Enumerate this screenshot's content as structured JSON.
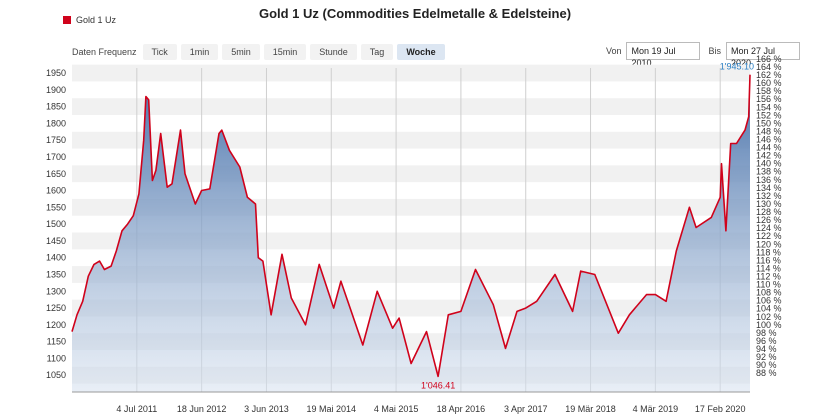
{
  "title": "Gold 1 Uz (Commodities Edelmetalle & Edelsteine)",
  "legend": {
    "label": "Gold 1 Uz",
    "color": "#d0021b"
  },
  "toolbar": {
    "freq_label": "Daten Frequenz",
    "buttons": [
      "Tick",
      "1min",
      "5min",
      "15min",
      "Stunde",
      "Tag",
      "Woche"
    ],
    "active": "Woche"
  },
  "date_range": {
    "from_label": "Von",
    "from_value": "Mon 19 Jul 2010",
    "to_label": "Bis",
    "to_value": "Mon 27 Jul 2020"
  },
  "chart_data": {
    "type": "area",
    "series": [
      {
        "name": "Gold 1 Uz",
        "color": "#d0021b",
        "points": [
          [
            "2010-07-19",
            1180
          ],
          [
            "2010-08-15",
            1230
          ],
          [
            "2010-09-15",
            1270
          ],
          [
            "2010-10-15",
            1345
          ],
          [
            "2010-11-15",
            1380
          ],
          [
            "2010-12-15",
            1390
          ],
          [
            "2011-01-10",
            1365
          ],
          [
            "2011-02-15",
            1375
          ],
          [
            "2011-03-15",
            1420
          ],
          [
            "2011-04-15",
            1480
          ],
          [
            "2011-05-15",
            1500
          ],
          [
            "2011-06-15",
            1525
          ],
          [
            "2011-07-15",
            1590
          ],
          [
            "2011-08-10",
            1750
          ],
          [
            "2011-08-22",
            1880
          ],
          [
            "2011-09-06",
            1870
          ],
          [
            "2011-09-26",
            1630
          ],
          [
            "2011-10-15",
            1660
          ],
          [
            "2011-11-10",
            1770
          ],
          [
            "2011-12-15",
            1610
          ],
          [
            "2012-01-10",
            1620
          ],
          [
            "2012-02-25",
            1780
          ],
          [
            "2012-03-20",
            1650
          ],
          [
            "2012-05-15",
            1560
          ],
          [
            "2012-06-18",
            1600
          ],
          [
            "2012-08-01",
            1605
          ],
          [
            "2012-09-20",
            1770
          ],
          [
            "2012-10-05",
            1780
          ],
          [
            "2012-11-15",
            1720
          ],
          [
            "2013-01-10",
            1670
          ],
          [
            "2013-02-20",
            1580
          ],
          [
            "2013-04-05",
            1560
          ],
          [
            "2013-04-20",
            1400
          ],
          [
            "2013-05-15",
            1390
          ],
          [
            "2013-06-28",
            1230
          ],
          [
            "2013-08-26",
            1410
          ],
          [
            "2013-10-15",
            1280
          ],
          [
            "2013-12-31",
            1200
          ],
          [
            "2014-03-15",
            1380
          ],
          [
            "2014-06-01",
            1250
          ],
          [
            "2014-07-10",
            1330
          ],
          [
            "2014-11-05",
            1140
          ],
          [
            "2015-01-22",
            1300
          ],
          [
            "2015-04-15",
            1190
          ],
          [
            "2015-05-20",
            1220
          ],
          [
            "2015-07-24",
            1085
          ],
          [
            "2015-10-15",
            1180
          ],
          [
            "2015-12-17",
            1046.41
          ],
          [
            "2016-02-10",
            1230
          ],
          [
            "2016-04-18",
            1240
          ],
          [
            "2016-07-06",
            1365
          ],
          [
            "2016-10-10",
            1260
          ],
          [
            "2016-12-15",
            1130
          ],
          [
            "2017-02-15",
            1240
          ],
          [
            "2017-04-03",
            1250
          ],
          [
            "2017-06-01",
            1270
          ],
          [
            "2017-09-08",
            1350
          ],
          [
            "2017-12-12",
            1240
          ],
          [
            "2018-01-25",
            1360
          ],
          [
            "2018-04-11",
            1350
          ],
          [
            "2018-08-16",
            1175
          ],
          [
            "2018-10-15",
            1230
          ],
          [
            "2019-01-15",
            1290
          ],
          [
            "2019-03-04",
            1290
          ],
          [
            "2019-05-01",
            1270
          ],
          [
            "2019-06-25",
            1420
          ],
          [
            "2019-09-04",
            1550
          ],
          [
            "2019-10-10",
            1490
          ],
          [
            "2019-12-31",
            1520
          ],
          [
            "2020-02-17",
            1580
          ],
          [
            "2020-02-24",
            1680
          ],
          [
            "2020-03-19",
            1480
          ],
          [
            "2020-04-14",
            1740
          ],
          [
            "2020-05-15",
            1740
          ],
          [
            "2020-06-30",
            1780
          ],
          [
            "2020-07-20",
            1820
          ],
          [
            "2020-07-27",
            1945.1
          ]
        ]
      }
    ],
    "x_ticks": [
      [
        "2011-07-04",
        "4 Jul 2011"
      ],
      [
        "2012-06-18",
        "18 Jun 2012"
      ],
      [
        "2013-06-03",
        "3 Jun 2013"
      ],
      [
        "2014-05-19",
        "19 Mai 2014"
      ],
      [
        "2015-05-04",
        "4 Mai 2015"
      ],
      [
        "2016-04-18",
        "18 Apr 2016"
      ],
      [
        "2017-04-03",
        "3 Apr 2017"
      ],
      [
        "2018-03-19",
        "19 Mär 2018"
      ],
      [
        "2019-03-04",
        "4 Mär 2019"
      ],
      [
        "2020-02-17",
        "17 Feb 2020"
      ]
    ],
    "xlim": [
      "2010-07-19",
      "2020-07-27"
    ],
    "y_left": {
      "ticks": [
        1050,
        1100,
        1150,
        1200,
        1250,
        1300,
        1350,
        1400,
        1450,
        1500,
        1550,
        1600,
        1650,
        1700,
        1750,
        1800,
        1850,
        1900,
        1950
      ],
      "range": [
        1000,
        1965
      ]
    },
    "y_right": {
      "ticks": [
        "88 %",
        "90 %",
        "92 %",
        "94 %",
        "96 %",
        "98 %",
        "100 %",
        "102 %",
        "104 %",
        "106 %",
        "108 %",
        "110 %",
        "112 %",
        "114 %",
        "116 %",
        "118 %",
        "120 %",
        "122 %",
        "124 %",
        "126 %",
        "128 %",
        "130 %",
        "132 %",
        "134 %",
        "136 %",
        "138 %",
        "140 %",
        "142 %",
        "144 %",
        "146 %",
        "148 %",
        "150 %",
        "152 %",
        "154 %",
        "156 %",
        "158 %",
        "160 %",
        "162 %",
        "164 %",
        "166 %"
      ],
      "range": [
        "86 %",
        "166 %"
      ]
    },
    "annotations": [
      {
        "date": "2015-12-17",
        "value": 1046.41,
        "text": "1'046.41",
        "color": "#d0021b"
      },
      {
        "date": "2020-07-27",
        "value": 1945.1,
        "text": "1'945.10",
        "color": "#2a7fc4"
      }
    ],
    "grid": true
  }
}
